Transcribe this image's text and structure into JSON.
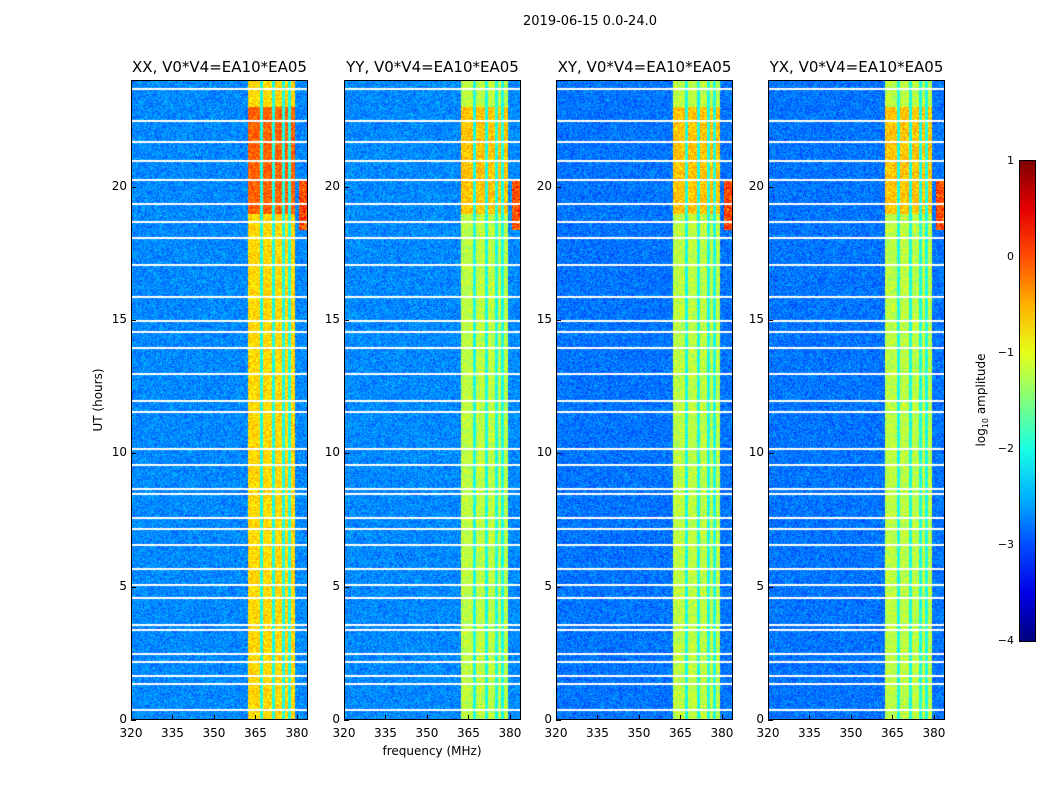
{
  "chart_data": {
    "type": "heatmap",
    "title": "2019-06-15 0.0-24.0",
    "panels": [
      {
        "title": "XX, V0*V4=EA10*EA05"
      },
      {
        "title": "YY, V0*V4=EA10*EA05"
      },
      {
        "title": "XY, V0*V4=EA10*EA05"
      },
      {
        "title": "YX, V0*V4=EA10*EA05"
      }
    ],
    "xlabel": "frequency (MHz)",
    "ylabel": "UT (hours)",
    "xlim": [
      320,
      384
    ],
    "ylim": [
      0,
      24
    ],
    "xticks": [
      "320",
      "335",
      "350",
      "365",
      "380"
    ],
    "yticks": [
      "0",
      "5",
      "10",
      "15",
      "20"
    ],
    "colorbar": {
      "label_main": "log",
      "label_sub": "10",
      "label_tail": " amplitude",
      "range": [
        -4,
        1
      ],
      "ticks": [
        "1",
        "0",
        "−1",
        "−2",
        "−3",
        "−4"
      ],
      "colormap": "jet"
    },
    "rfi_band_mhz": [
      362,
      379
    ],
    "flagged_hours": [
      0.4,
      1.4,
      1.7,
      2.2,
      2.5,
      3.4,
      3.6,
      4.6,
      5.1,
      5.7,
      6.6,
      7.2,
      7.6,
      8.5,
      8.7,
      9.6,
      10.2,
      11.6,
      12.0,
      13.0,
      14.0,
      14.6,
      15.0,
      15.9,
      17.1,
      18.1,
      18.7,
      19.4,
      20.3,
      21.0,
      21.7,
      22.5,
      23.7
    ]
  }
}
